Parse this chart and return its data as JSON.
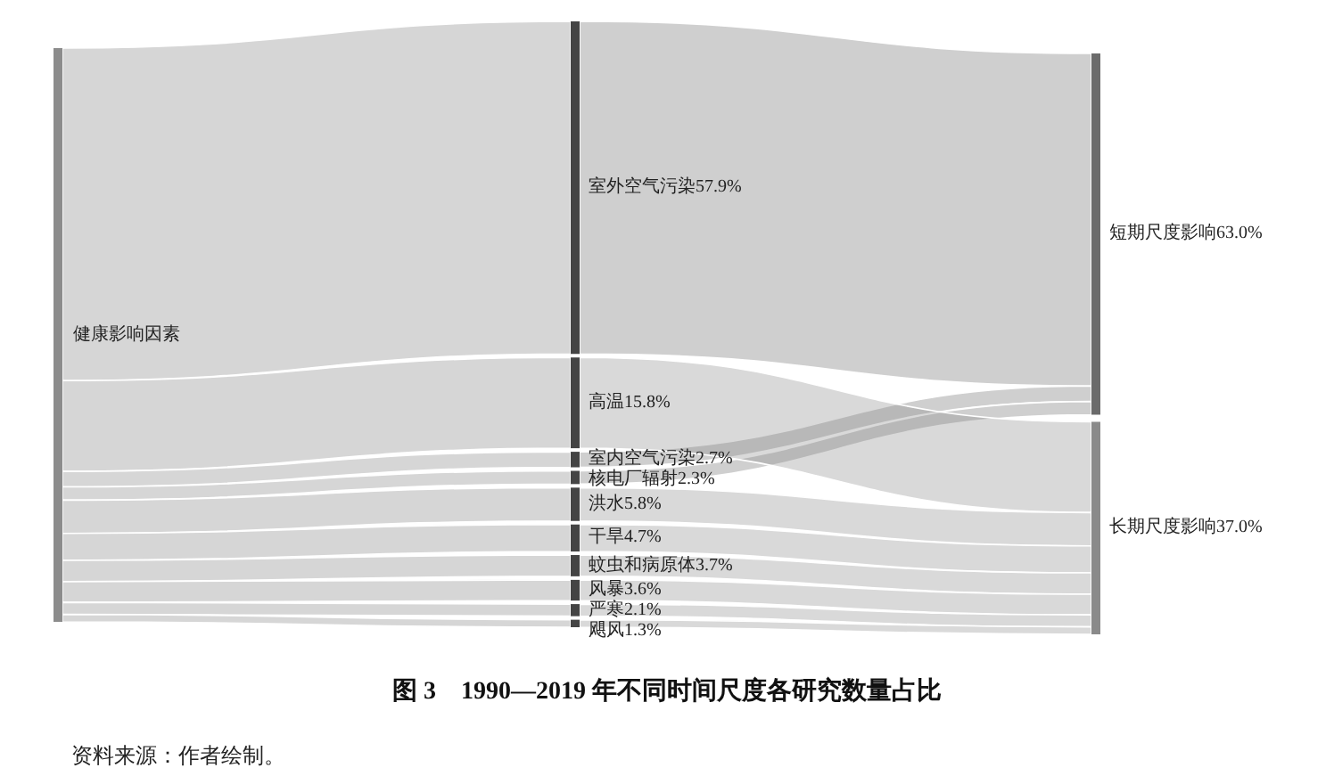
{
  "chart_data": {
    "type": "other",
    "title": "图 3　1990—2019 年不同时间尺度各研究数量占比",
    "categories": [
      "室外空气污染",
      "高温",
      "室内空气污染",
      "核电厂辐射",
      "洪水",
      "干旱",
      "蚊虫和病原体",
      "风暴",
      "严寒",
      "飓风"
    ],
    "series": [
      {
        "name": "短期尺度影响63.0%",
        "color": "#6b6b6b",
        "values": [
          57.9,
          null,
          2.7,
          2.3,
          null,
          null,
          null,
          null,
          null,
          null
        ],
        "value_labels": [
          "57.9%",
          null,
          "2.7%",
          "2.3%",
          null,
          null,
          null,
          null,
          null,
          null
        ]
      },
      {
        "name": "长期尺度影响37.0%",
        "color": "#8a8a8a",
        "values": [
          null,
          15.8,
          null,
          null,
          5.8,
          4.7,
          3.7,
          3.6,
          2.1,
          1.3
        ],
        "value_labels": [
          null,
          "15.8%",
          null,
          null,
          "5.8%",
          "4.7%",
          "3.7%",
          "3.6%",
          "2.1%",
          "1.3%"
        ]
      }
    ],
    "annotations": [
      "健康影响因素",
      "资料来源：作者绘制。"
    ]
  }
}
